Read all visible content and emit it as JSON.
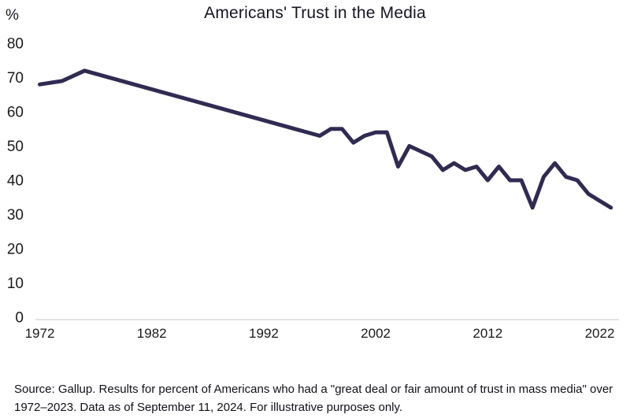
{
  "header": {
    "title": "Americans' Trust in the Media",
    "y_axis_unit": "%"
  },
  "footer": {
    "source_note": "Source: Gallup. Results for percent of Americans who had a \"great deal or fair amount of trust in mass media\" over 1972–2023. Data as of September 11, 2024. For illustrative purposes only."
  },
  "chart_data": {
    "type": "line",
    "title": "Americans' Trust in the Media",
    "xlabel": "",
    "ylabel": "%",
    "series_name": "Percent of Americans with a great deal or fair amount of trust in mass media",
    "x": [
      1972,
      1974,
      1976,
      1997,
      1998,
      1999,
      2000,
      2001,
      2002,
      2003,
      2004,
      2005,
      2007,
      2008,
      2009,
      2010,
      2011,
      2012,
      2013,
      2014,
      2015,
      2016,
      2017,
      2018,
      2019,
      2020,
      2021,
      2022,
      2023
    ],
    "y": [
      68,
      69,
      72,
      53,
      55,
      55,
      51,
      53,
      54,
      54,
      44,
      50,
      47,
      43,
      45,
      43,
      44,
      40,
      44,
      40,
      40,
      32,
      41,
      45,
      41,
      40,
      36,
      34,
      32
    ],
    "xticks": [
      1972,
      1982,
      1992,
      2002,
      2012,
      2022
    ],
    "yticks": [
      80,
      70,
      60,
      50,
      40,
      30,
      20,
      10,
      0
    ],
    "xlim": [
      1972,
      2023
    ],
    "ylim": [
      0,
      80
    ],
    "grid": false,
    "legend_position": "none",
    "line_color": "#302b52",
    "axis_color": "#d9d9d9",
    "tick_label_color": "#1a1a1a",
    "line_width": 5
  }
}
